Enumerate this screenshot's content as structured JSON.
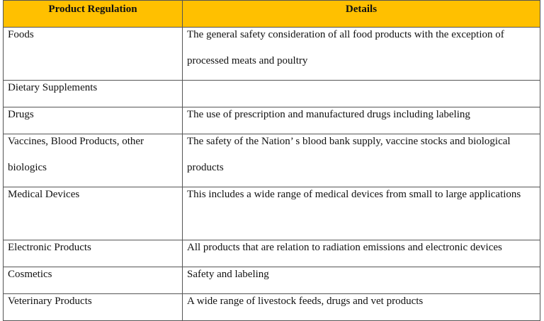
{
  "header": {
    "columns": [
      "Product Regulation",
      "Details"
    ]
  },
  "table": {
    "rows": [
      [
        "Foods",
        "The general safety consideration of all food products with the exception of processed meats and poultry"
      ],
      [
        "Dietary Supplements"
      ],
      [
        "Drugs",
        "The use of prescription and manufactured drugs including labeling"
      ],
      [
        "Vaccines, Blood Products, other biologics",
        "The safety of the Nation’ s blood bank supply, vaccine stocks and biological products"
      ],
      [
        "Medical Devices",
        "This includes a wide range of medical devices from small to large applications"
      ],
      [
        "Electronic Products",
        "All products that are relation to radiation emissions and electronic devices"
      ],
      [
        "Cosmetics",
        "Safety and labeling"
      ],
      [
        "Veterinary Products",
        "A wide range of livestock feeds, drugs and vet products"
      ]
    ]
  }
}
